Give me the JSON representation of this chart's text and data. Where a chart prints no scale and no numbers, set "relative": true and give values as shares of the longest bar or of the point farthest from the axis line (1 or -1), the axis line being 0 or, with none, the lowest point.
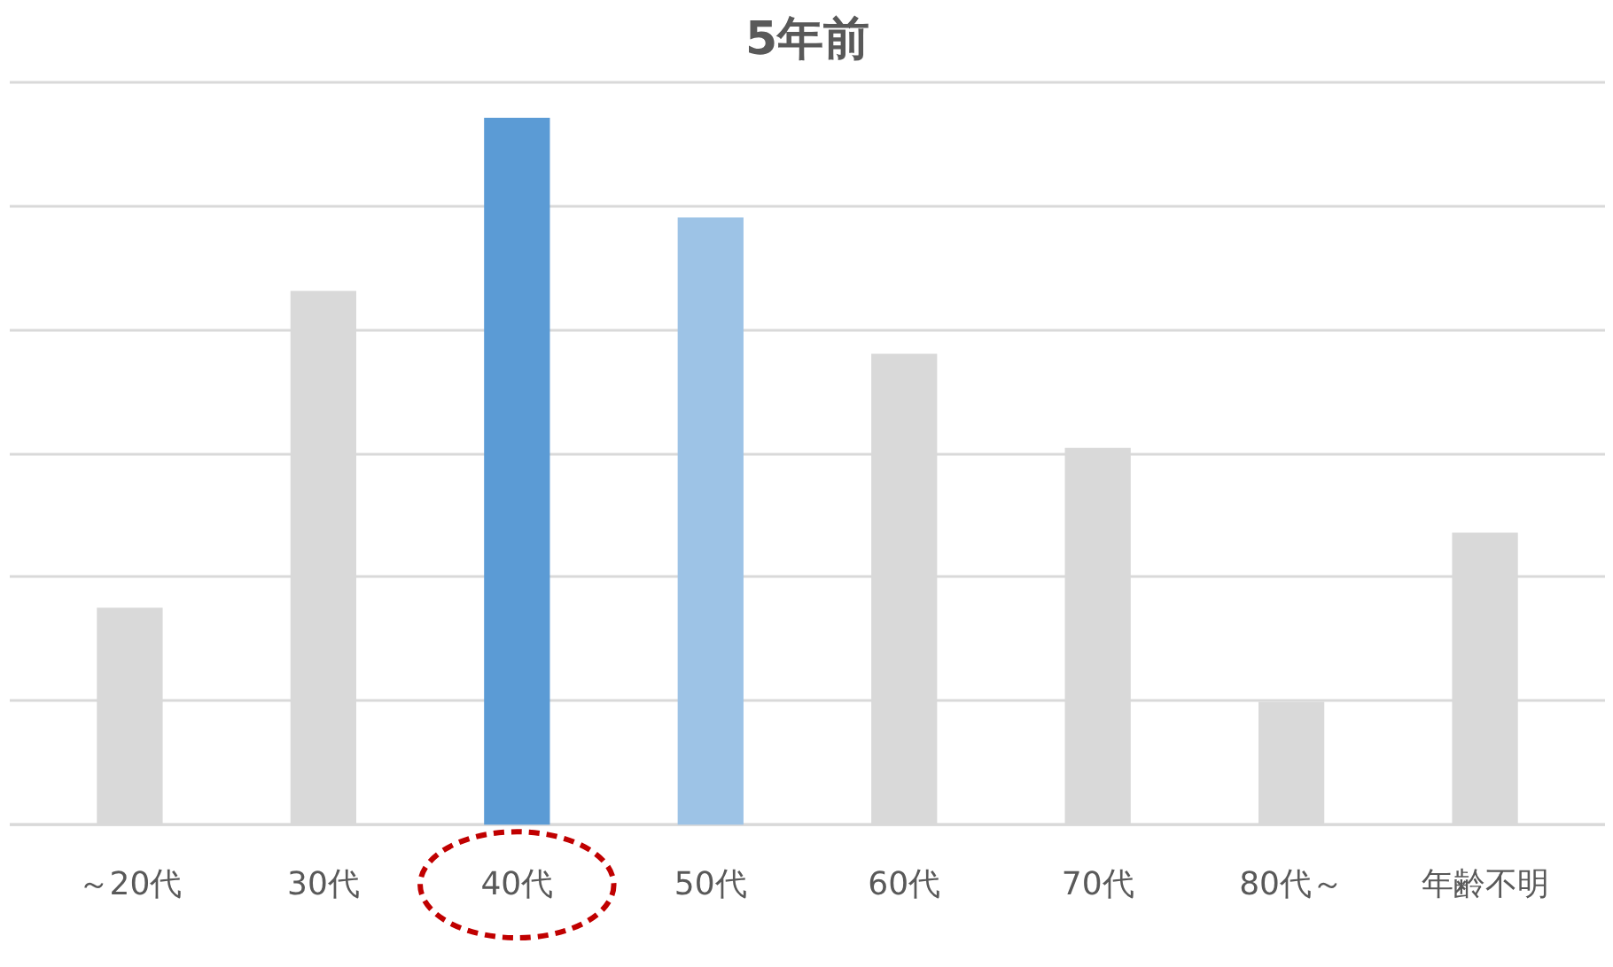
{
  "chart_data": {
    "type": "bar",
    "title": "5年前",
    "relative": true,
    "grid": "y",
    "categories": [
      "～20代",
      "30代",
      "40代",
      "50代",
      "60代",
      "70代",
      "80代～",
      "年齢不明"
    ],
    "values": [
      0.307,
      0.755,
      1,
      0.859,
      0.666,
      0.533,
      0.174,
      0.413
    ],
    "colors": [
      "#d9d9d9",
      "#d9d9d9",
      "#5b9bd5",
      "#9dc3e6",
      "#d9d9d9",
      "#d9d9d9",
      "#d9d9d9",
      "#d9d9d9"
    ]
  }
}
